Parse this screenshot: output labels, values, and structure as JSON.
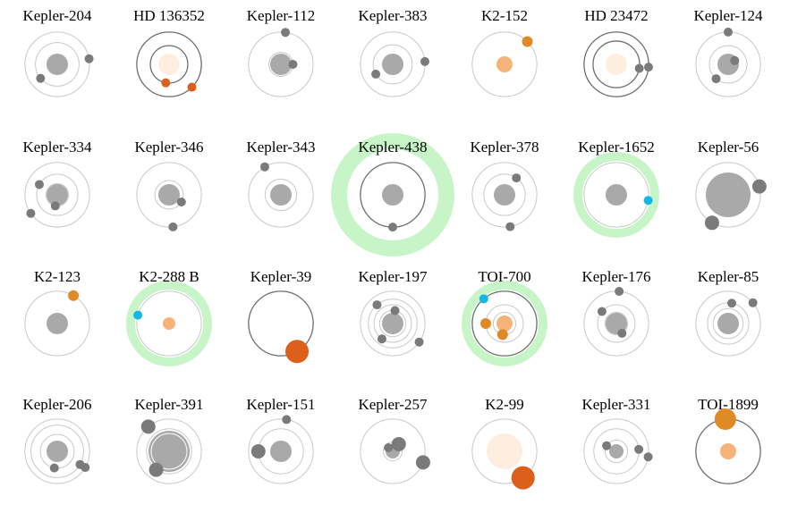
{
  "colors": {
    "planet_gray": "#7a7a7a",
    "star_gray": "#a9a9a9",
    "star_light": "#fdeee0",
    "star_orange": "#f5b37a",
    "planet_orange": "#e08a26",
    "planet_dark_orange": "#dc5f1c",
    "planet_cyan": "#12b8e6",
    "habitable_zone": "#c8f5c8",
    "orbit_gray": "#c9c9c9",
    "orbit_dark": "#6e6e6e"
  },
  "systems": [
    {
      "name": "Kepler-204",
      "star": "gray",
      "orbits": [
        0.58,
        0.86
      ],
      "planets": [
        {
          "orbit": 1,
          "angle": -10,
          "color": "gray"
        },
        {
          "orbit": 0,
          "angle": 140,
          "color": "gray"
        }
      ]
    },
    {
      "name": "HD 136352",
      "star": "light",
      "orbits": [
        0.5,
        0.86
      ],
      "dark_orbit": true,
      "planets": [
        {
          "orbit": 0,
          "angle": 100,
          "color": "dark_orange"
        },
        {
          "orbit": 1,
          "angle": 45,
          "color": "dark_orange"
        }
      ]
    },
    {
      "name": "Kepler-112",
      "star": "gray",
      "orbits": [
        0.32,
        0.86
      ],
      "planets": [
        {
          "orbit": 0,
          "angle": 0,
          "color": "gray"
        },
        {
          "orbit": 1,
          "angle": -82,
          "color": "gray"
        }
      ]
    },
    {
      "name": "Kepler-383",
      "star": "gray",
      "orbits": [
        0.52,
        0.86
      ],
      "planets": [
        {
          "orbit": 1,
          "angle": -5,
          "color": "gray"
        },
        {
          "orbit": 0,
          "angle": 150,
          "color": "gray"
        }
      ]
    },
    {
      "name": "K2-152",
      "star": "orange",
      "orbits": [
        0.86
      ],
      "planets": [
        {
          "orbit": 0,
          "angle": -45,
          "color": "orange"
        }
      ]
    },
    {
      "name": "HD 23472",
      "star": "light",
      "orbits": [
        0.62,
        0.86
      ],
      "dark_orbit": true,
      "planets": [
        {
          "orbit": 0,
          "angle": 10,
          "color": "gray"
        },
        {
          "orbit": 1,
          "angle": 5,
          "color": "gray"
        }
      ]
    },
    {
      "name": "Kepler-124",
      "star": "gray",
      "orbits": [
        0.2,
        0.5,
        0.86
      ],
      "planets": [
        {
          "orbit": 0,
          "angle": -30,
          "color": "gray"
        },
        {
          "orbit": 1,
          "angle": 130,
          "color": "gray"
        },
        {
          "orbit": 2,
          "angle": -90,
          "color": "gray"
        }
      ]
    },
    {
      "name": "Kepler-334",
      "star": "gray",
      "orbits": [
        0.3,
        0.55,
        0.86
      ],
      "planets": [
        {
          "orbit": 1,
          "angle": -150,
          "color": "gray"
        },
        {
          "orbit": 0,
          "angle": 100,
          "color": "gray"
        },
        {
          "orbit": 2,
          "angle": 145,
          "color": "gray"
        }
      ]
    },
    {
      "name": "Kepler-346",
      "star": "gray",
      "orbits": [
        0.38,
        0.86
      ],
      "planets": [
        {
          "orbit": 0,
          "angle": 30,
          "color": "gray"
        },
        {
          "orbit": 1,
          "angle": 83,
          "color": "gray"
        }
      ]
    },
    {
      "name": "Kepler-343",
      "star": "gray",
      "orbits": [
        0.42,
        0.86
      ],
      "planets": [
        {
          "orbit": 1,
          "angle": -120,
          "color": "gray"
        }
      ]
    },
    {
      "name": "Kepler-438",
      "star": "gray",
      "orbits": [
        0.86
      ],
      "habitable": true,
      "dark_orbit": true,
      "planets": [
        {
          "orbit": 0,
          "angle": 90,
          "color": "gray"
        }
      ]
    },
    {
      "name": "Kepler-378",
      "star": "gray",
      "orbits": [
        0.55,
        0.86
      ],
      "planets": [
        {
          "orbit": 0,
          "angle": -55,
          "color": "gray"
        },
        {
          "orbit": 1,
          "angle": 80,
          "color": "gray"
        }
      ]
    },
    {
      "name": "Kepler-1652",
      "star": "gray",
      "orbits": [
        0.86
      ],
      "habitable": true,
      "planets": [
        {
          "orbit": 0,
          "angle": 10,
          "color": "cyan"
        }
      ]
    },
    {
      "name": "Kepler-56",
      "star": "gray_big",
      "orbits": [
        0.86
      ],
      "planets": [
        {
          "orbit": 0,
          "angle": 120,
          "color": "gray_big"
        },
        {
          "orbit": 0,
          "angle": -15,
          "color": "gray_big"
        }
      ]
    },
    {
      "name": "K2-123",
      "star": "gray",
      "orbits": [
        0.86
      ],
      "planets": [
        {
          "orbit": 0,
          "angle": -60,
          "color": "orange"
        }
      ]
    },
    {
      "name": "K2-288 B",
      "star": "orange_small",
      "orbits": [
        0.86
      ],
      "habitable": true,
      "planets": [
        {
          "orbit": 0,
          "angle": -165,
          "color": "cyan"
        }
      ]
    },
    {
      "name": "Kepler-39",
      "star": "none",
      "orbits": [
        0.86
      ],
      "dark_orbit": true,
      "planets": [
        {
          "orbit": 0,
          "angle": 60,
          "color": "dark_orange_big"
        }
      ]
    },
    {
      "name": "Kepler-197",
      "star": "gray",
      "orbits": [
        0.35,
        0.5,
        0.65,
        0.86
      ],
      "planets": [
        {
          "orbit": 2,
          "angle": -130,
          "color": "gray"
        },
        {
          "orbit": 1,
          "angle": 125,
          "color": "gray"
        },
        {
          "orbit": 3,
          "angle": 35,
          "color": "gray"
        },
        {
          "orbit": 0,
          "angle": -80,
          "color": "gray"
        }
      ]
    },
    {
      "name": "TOI-700",
      "star": "orange",
      "orbits": [
        0.3,
        0.5,
        0.86
      ],
      "habitable": true,
      "dark_orbit": true,
      "planets": [
        {
          "orbit": 0,
          "angle": 100,
          "color": "orange"
        },
        {
          "orbit": 1,
          "angle": 180,
          "color": "orange"
        },
        {
          "orbit": 2,
          "angle": -130,
          "color": "cyan"
        }
      ]
    },
    {
      "name": "Kepler-176",
      "star": "gray",
      "orbits": [
        0.3,
        0.5,
        0.86
      ],
      "planets": [
        {
          "orbit": 0,
          "angle": 60,
          "color": "gray"
        },
        {
          "orbit": 1,
          "angle": -140,
          "color": "gray"
        },
        {
          "orbit": 2,
          "angle": -85,
          "color": "gray"
        }
      ]
    },
    {
      "name": "Kepler-85",
      "star": "gray",
      "orbits": [
        0.4,
        0.55,
        0.86
      ],
      "planets": [
        {
          "orbit": 1,
          "angle": -80,
          "color": "gray"
        },
        {
          "orbit": 2,
          "angle": -40,
          "color": "gray"
        }
      ]
    },
    {
      "name": "Kepler-206",
      "star": "gray",
      "orbits": [
        0.45,
        0.7,
        0.86
      ],
      "planets": [
        {
          "orbit": 0,
          "angle": 100,
          "color": "gray"
        },
        {
          "orbit": 1,
          "angle": 30,
          "color": "gray"
        },
        {
          "orbit": 2,
          "angle": 30,
          "color": "gray"
        }
      ]
    },
    {
      "name": "Kepler-391",
      "star": "gray_huge",
      "orbits": [
        0.6,
        0.86
      ],
      "planets": [
        {
          "orbit": 1,
          "angle": -130,
          "color": "gray_big"
        },
        {
          "orbit": 0,
          "angle": 125,
          "color": "gray_big"
        }
      ]
    },
    {
      "name": "Kepler-151",
      "star": "gray",
      "orbits": [
        0.6,
        0.86
      ],
      "planets": [
        {
          "orbit": 1,
          "angle": -80,
          "color": "gray"
        },
        {
          "orbit": 0,
          "angle": 180,
          "color": "gray_big"
        }
      ]
    },
    {
      "name": "Kepler-257",
      "star": "gray_small",
      "orbits": [
        0.15,
        0.25,
        0.86
      ],
      "planets": [
        {
          "orbit": 1,
          "angle": -50,
          "color": "gray_big"
        },
        {
          "orbit": 0,
          "angle": -140,
          "color": "gray"
        },
        {
          "orbit": 2,
          "angle": 20,
          "color": "gray_big"
        }
      ]
    },
    {
      "name": "K2-99",
      "star": "light_big",
      "orbits": [
        0.86
      ],
      "planets": [
        {
          "orbit": 0,
          "angle": 55,
          "color": "dark_orange_big"
        }
      ]
    },
    {
      "name": "Kepler-331",
      "star": "gray_small",
      "orbits": [
        0.3,
        0.6,
        0.86
      ],
      "planets": [
        {
          "orbit": 0,
          "angle": -150,
          "color": "gray"
        },
        {
          "orbit": 1,
          "angle": -5,
          "color": "gray"
        },
        {
          "orbit": 2,
          "angle": 10,
          "color": "gray"
        }
      ]
    },
    {
      "name": "TOI-1899",
      "star": "orange",
      "orbits": [
        0.86
      ],
      "dark_orbit": true,
      "planets": [
        {
          "orbit": 0,
          "angle": -95,
          "color": "orange_big"
        }
      ]
    }
  ]
}
